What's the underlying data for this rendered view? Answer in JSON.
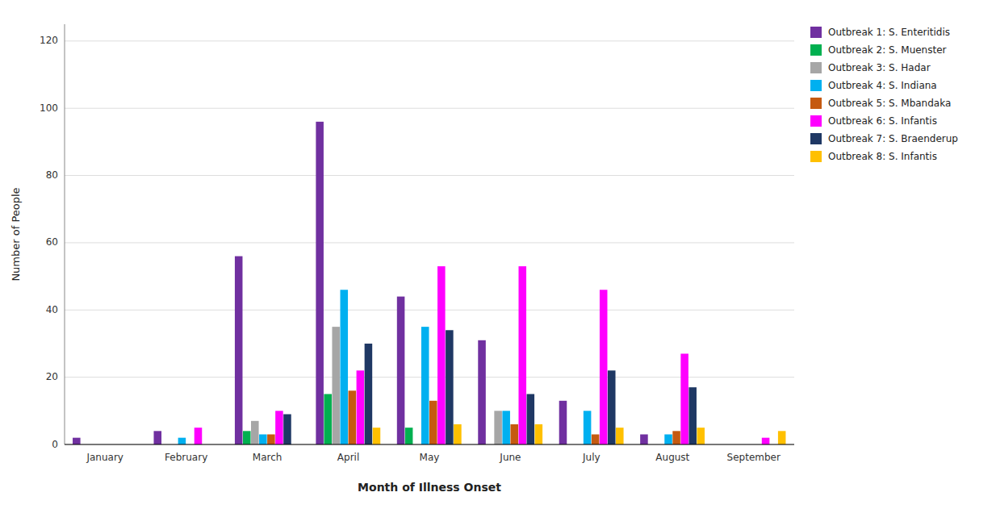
{
  "chart_data": {
    "type": "bar",
    "categories": [
      "January",
      "February",
      "March",
      "April",
      "May",
      "June",
      "July",
      "August",
      "September"
    ],
    "series": [
      {
        "name": "Outbreak 1: S. Enteritidis",
        "color": "#7030A0",
        "values": [
          2,
          4,
          56,
          96,
          44,
          31,
          13,
          3,
          0
        ]
      },
      {
        "name": "Outbreak 2: S. Muenster",
        "color": "#00B050",
        "values": [
          0,
          0,
          4,
          15,
          5,
          0,
          0,
          0,
          0
        ]
      },
      {
        "name": "Outbreak 3: S. Hadar",
        "color": "#A6A6A6",
        "values": [
          0,
          0,
          7,
          35,
          0,
          10,
          0,
          0,
          0
        ]
      },
      {
        "name": "Outbreak 4: S. Indiana",
        "color": "#00B0F0",
        "values": [
          0,
          2,
          3,
          46,
          35,
          10,
          10,
          3,
          0
        ]
      },
      {
        "name": "Outbreak 5: S. Mbandaka",
        "color": "#C55A11",
        "values": [
          0,
          0,
          3,
          16,
          13,
          6,
          3,
          4,
          0
        ]
      },
      {
        "name": "Outbreak 6: S. Infantis",
        "color": "#FF00FF",
        "values": [
          0,
          5,
          10,
          22,
          53,
          53,
          46,
          27,
          2
        ]
      },
      {
        "name": "Outbreak 7: S. Braenderup",
        "color": "#1F3864",
        "values": [
          0,
          0,
          9,
          30,
          34,
          15,
          22,
          17,
          0
        ]
      },
      {
        "name": "Outbreak 8: S. Infantis",
        "color": "#FFC000",
        "values": [
          0,
          0,
          0,
          5,
          6,
          6,
          5,
          5,
          4
        ]
      }
    ],
    "ylabel": "Number of People",
    "xlabel": "Month of Illness Onset",
    "ylim": [
      0,
      125
    ],
    "yticks": [
      0,
      20,
      40,
      60,
      80,
      100,
      120
    ],
    "grid": true,
    "legend": "upper right"
  }
}
